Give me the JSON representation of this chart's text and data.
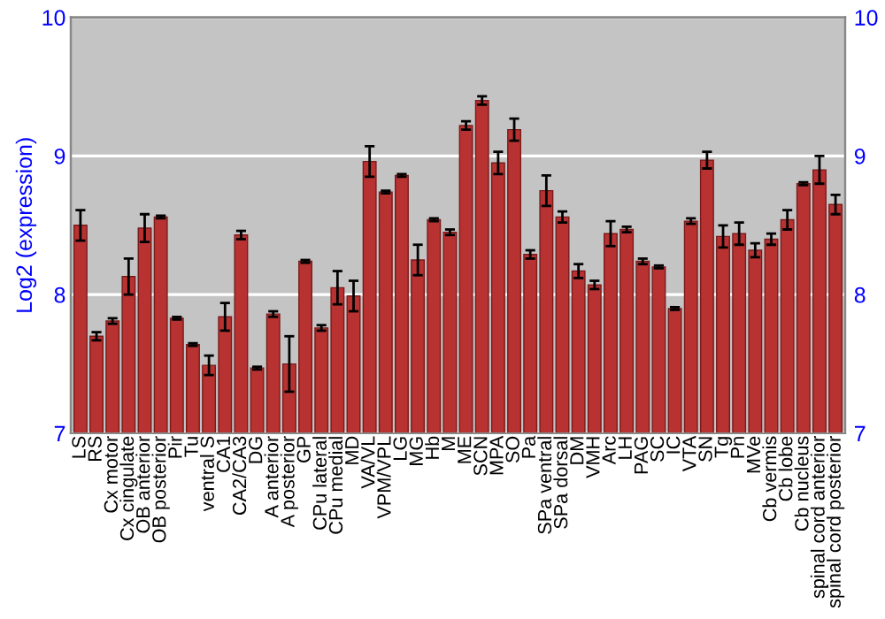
{
  "chart_data": {
    "type": "bar",
    "ylabel": "Log2 (expression)",
    "categories": [
      "LS",
      "RS",
      "Cx motor",
      "Cx cingulate",
      "OB anterior",
      "OB posterior",
      "Pir",
      "Tu",
      "ventral S",
      "CA1",
      "CA2/CA3",
      "DG",
      "A anterior",
      "A posterior",
      "GP",
      "CPu lateral",
      "CPu medial",
      "MD",
      "VA/VL",
      "VPM/VPL",
      "LG",
      "MG",
      "Hb",
      "M",
      "ME",
      "SCN",
      "MPA",
      "SO",
      "Pa",
      "SPa ventral",
      "SPa dorsal",
      "DM",
      "VMH",
      "Arc",
      "LH",
      "PAG",
      "SC",
      "IC",
      "VTA",
      "SN",
      "Tg",
      "Pn",
      "MVe",
      "Cb vermis",
      "Cb lobe",
      "Cb nucleus",
      "spinal cord anterior",
      "spinal cord posterior"
    ],
    "values": [
      8.5,
      7.7,
      7.81,
      8.13,
      8.48,
      8.56,
      7.83,
      7.64,
      7.49,
      7.84,
      8.43,
      7.47,
      7.86,
      7.5,
      8.24,
      7.76,
      8.05,
      7.99,
      8.96,
      8.74,
      8.86,
      8.25,
      8.54,
      8.45,
      9.22,
      9.4,
      8.95,
      9.19,
      8.29,
      8.75,
      8.56,
      8.17,
      8.07,
      8.44,
      8.47,
      8.24,
      8.2,
      7.9,
      8.53,
      8.97,
      8.42,
      8.44,
      8.32,
      8.4,
      8.54,
      8.8,
      8.9,
      8.65
    ],
    "errors": [
      0.11,
      0.03,
      0.02,
      0.13,
      0.1,
      0.01,
      0.01,
      0.01,
      0.07,
      0.1,
      0.03,
      0.01,
      0.02,
      0.2,
      0.01,
      0.02,
      0.12,
      0.11,
      0.11,
      0.01,
      0.01,
      0.11,
      0.01,
      0.02,
      0.03,
      0.03,
      0.08,
      0.08,
      0.03,
      0.11,
      0.04,
      0.05,
      0.03,
      0.09,
      0.02,
      0.02,
      0.01,
      0.01,
      0.02,
      0.06,
      0.08,
      0.08,
      0.05,
      0.04,
      0.07,
      0.01,
      0.1,
      0.07
    ],
    "color": "#b83232",
    "ylim": [
      7,
      10
    ],
    "yticks": [
      7,
      8,
      9,
      10
    ],
    "y2lim": [
      7,
      10
    ],
    "y2ticks": [
      7,
      8,
      9,
      10
    ],
    "grid": "y"
  }
}
